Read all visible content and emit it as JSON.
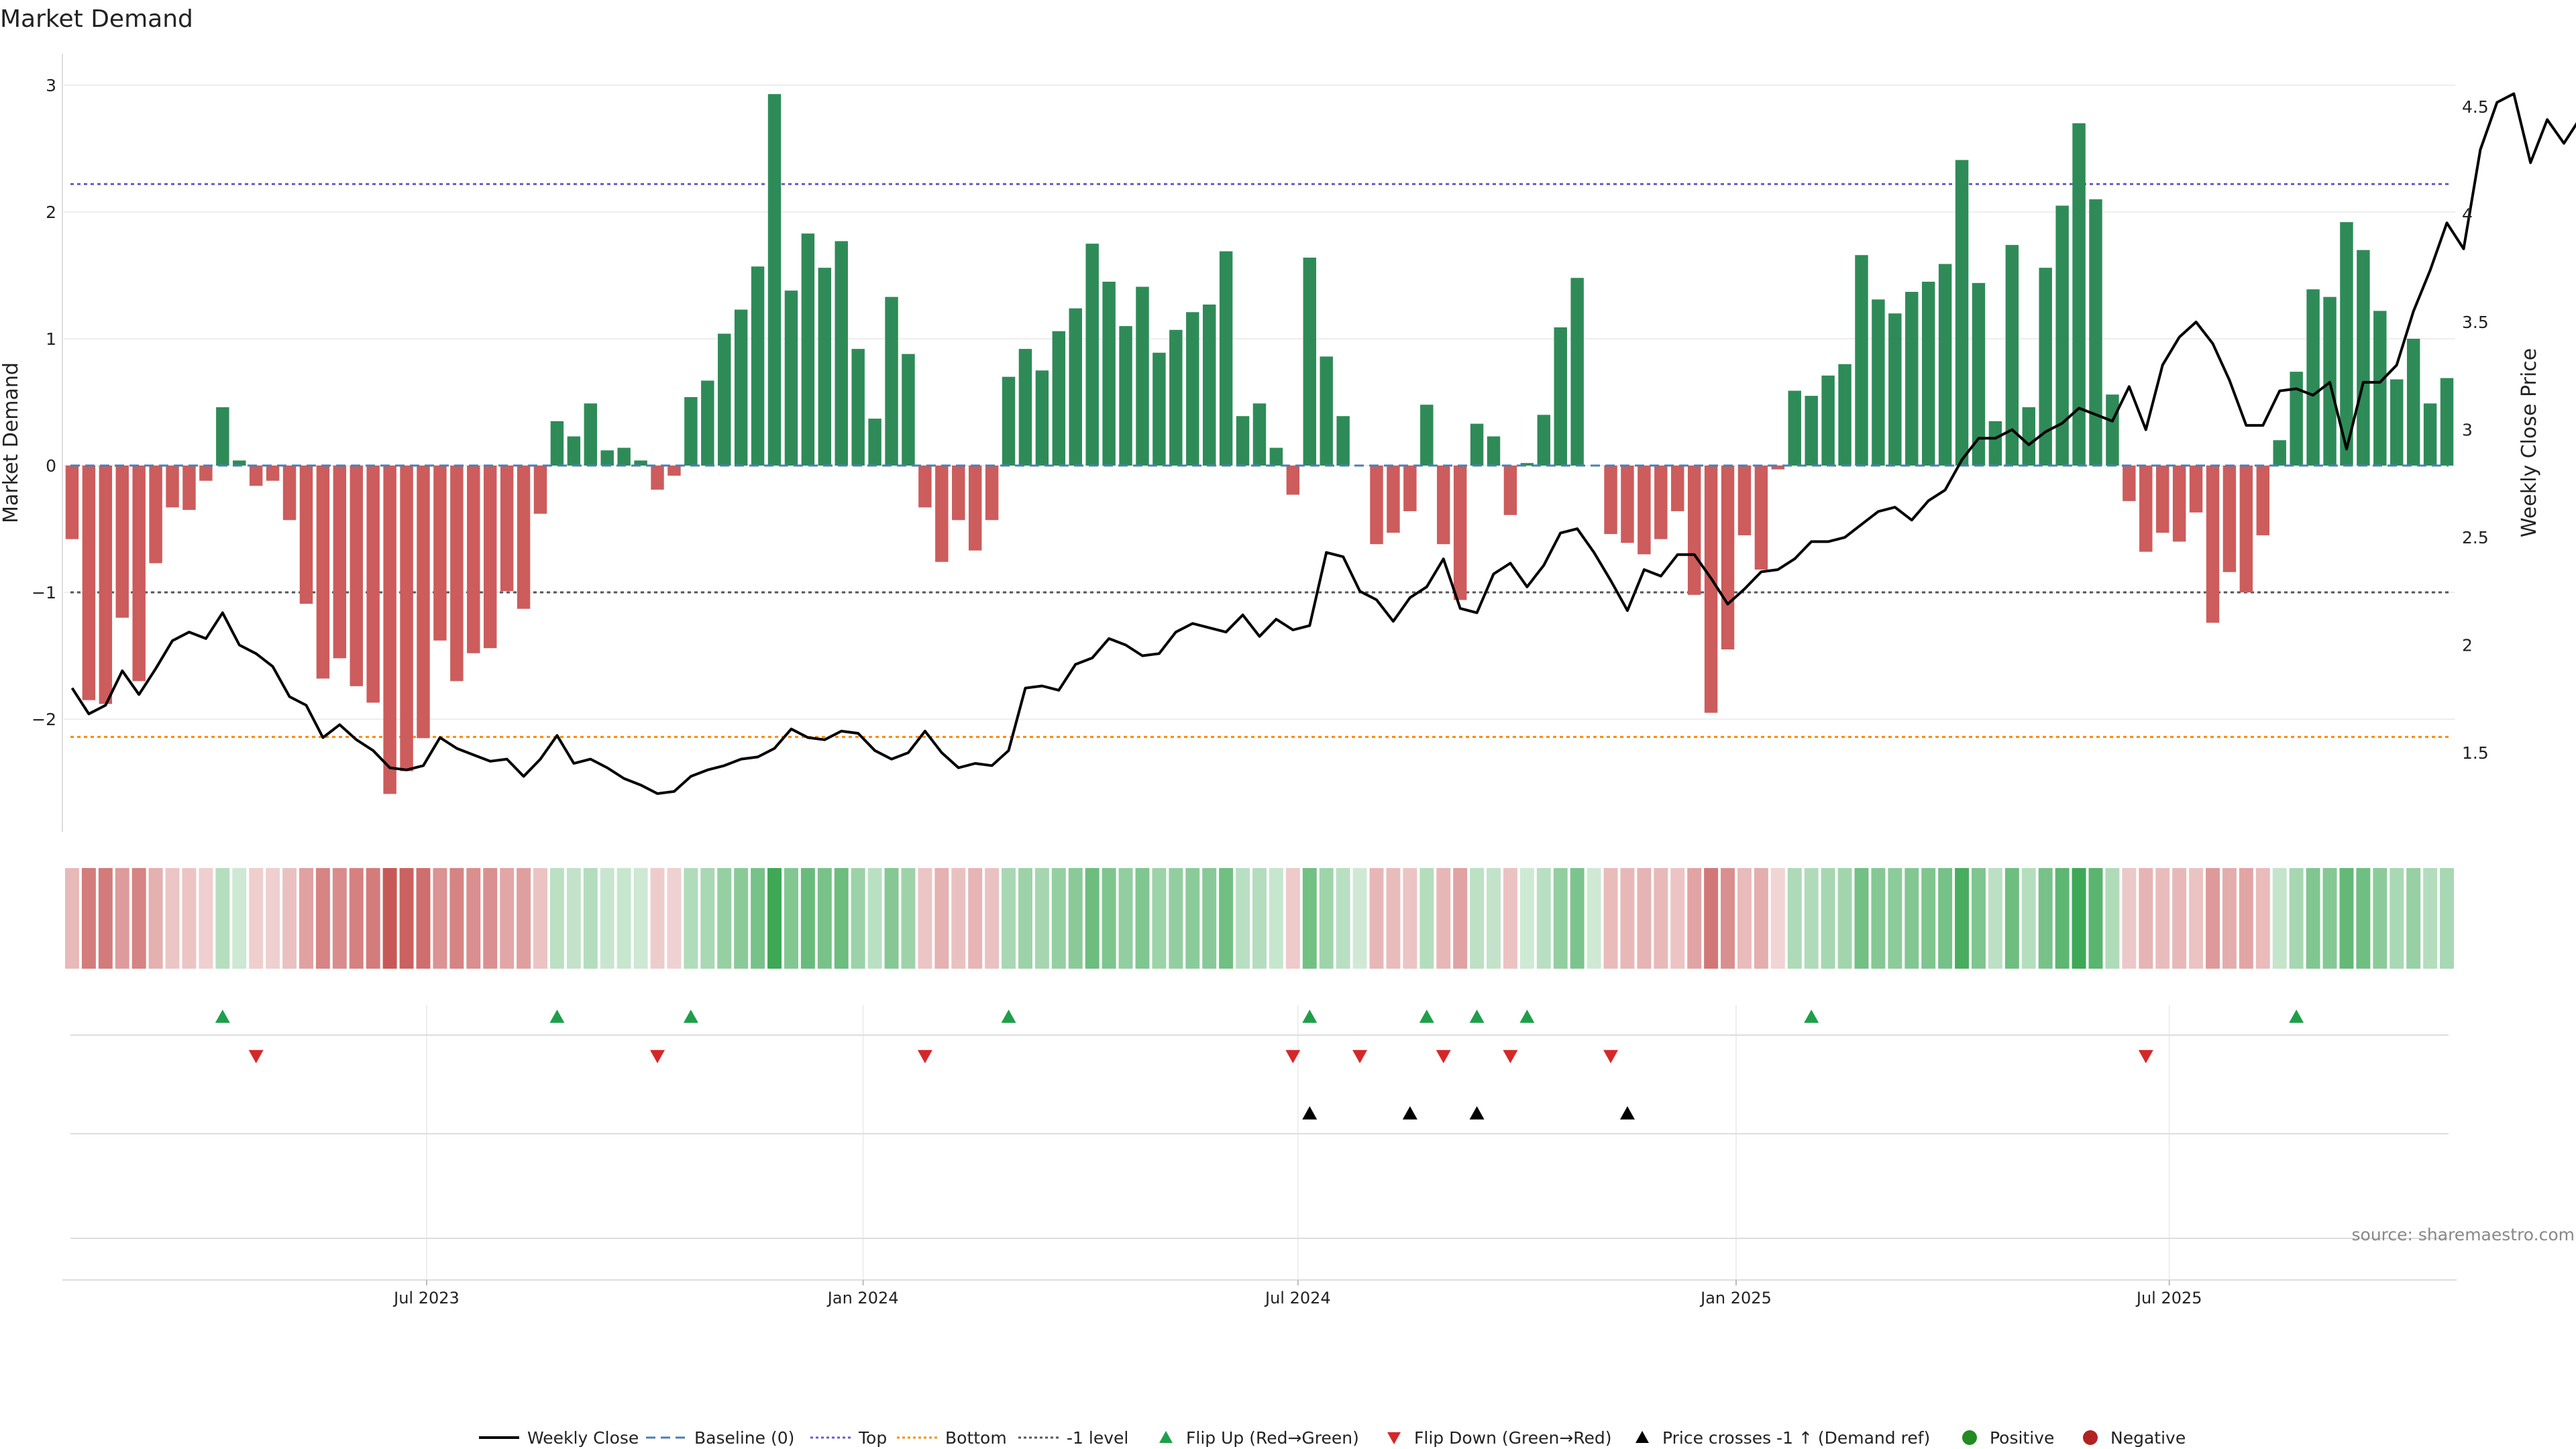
{
  "chart_data": {
    "type": "bar",
    "title": "Market Demand",
    "ylabel": "Market Demand",
    "y2label": "Weekly Close Price",
    "ylim": [
      -2.9,
      3.05
    ],
    "y2lim": [
      1.1,
      4.6
    ],
    "yticks": [
      3,
      2,
      1,
      0,
      -1,
      -2
    ],
    "ytick_labels": [
      "3",
      "2",
      "1",
      "0",
      "−1",
      "−2"
    ],
    "y2ticks": [
      4.5,
      4,
      3.5,
      3,
      2.5,
      2,
      1.5
    ],
    "y2tick_labels": [
      "4.5",
      "4",
      "3.5",
      "3",
      "2.5",
      "2",
      "1.5"
    ],
    "reference_lines": {
      "top": 2.22,
      "bottom": -2.14,
      "minus_one": -1,
      "baseline": 0
    },
    "x_ticks": [
      {
        "index": 21.2,
        "label": "Jul 2023"
      },
      {
        "index": 47.3,
        "label": "Jan 2024"
      },
      {
        "index": 73.3,
        "label": "Jul 2024"
      },
      {
        "index": 99.5,
        "label": "Jan 2025"
      },
      {
        "index": 125.4,
        "label": "Jul 2025"
      }
    ],
    "series": [
      {
        "name": "Market Demand",
        "values": [
          -0.58,
          -1.85,
          -1.88,
          -1.2,
          -1.7,
          -0.77,
          -0.33,
          -0.35,
          -0.12,
          0.46,
          0.04,
          -0.16,
          -0.12,
          -0.43,
          -1.09,
          -1.68,
          -1.52,
          -1.74,
          -1.87,
          -2.59,
          -2.41,
          -2.15,
          -1.38,
          -1.7,
          -1.48,
          -1.44,
          -0.99,
          -1.13,
          -0.38,
          0.35,
          0.23,
          0.49,
          0.12,
          0.14,
          0.04,
          -0.19,
          -0.08,
          0.54,
          0.67,
          1.04,
          1.23,
          1.57,
          2.93,
          1.38,
          1.83,
          1.56,
          1.77,
          0.92,
          0.37,
          1.33,
          0.88,
          -0.33,
          -0.76,
          -0.43,
          -0.67,
          -0.43,
          0.7,
          0.92,
          0.75,
          1.06,
          1.24,
          1.75,
          1.45,
          1.1,
          1.41,
          0.89,
          1.07,
          1.21,
          1.27,
          1.69,
          0.39,
          0.49,
          0.14,
          -0.23,
          1.64,
          0.86,
          0.39,
          0.0,
          -0.62,
          -0.53,
          -0.36,
          0.48,
          -0.62,
          -1.06,
          0.33,
          0.23,
          -0.39,
          0.02,
          0.4,
          1.09,
          1.48,
          0.0,
          -0.54,
          -0.61,
          -0.7,
          -0.58,
          -0.36,
          -1.02,
          -1.95,
          -1.45,
          -0.55,
          -0.82,
          -0.03,
          0.59,
          0.55,
          0.71,
          0.8,
          1.66,
          1.31,
          1.2,
          1.37,
          1.45,
          1.59,
          2.41,
          1.44,
          0.35,
          1.74,
          0.46,
          1.56,
          2.05,
          2.7,
          2.1,
          0.56,
          -0.28,
          -0.68,
          -0.53,
          -0.6,
          -0.37,
          -1.24,
          -0.84,
          -1.0,
          -0.55,
          0.2,
          0.74,
          1.39,
          1.33,
          1.92,
          1.7,
          1.22,
          0.68,
          1.0,
          0.49,
          0.69
        ]
      },
      {
        "name": "Weekly Close",
        "values": [
          1.8,
          1.68,
          1.72,
          1.88,
          1.77,
          1.89,
          2.02,
          2.06,
          2.03,
          2.15,
          2.0,
          1.96,
          1.9,
          1.76,
          1.72,
          1.57,
          1.63,
          1.56,
          1.51,
          1.43,
          1.42,
          1.44,
          1.57,
          1.52,
          1.49,
          1.46,
          1.47,
          1.39,
          1.47,
          1.58,
          1.45,
          1.47,
          1.43,
          1.38,
          1.35,
          1.31,
          1.32,
          1.39,
          1.42,
          1.44,
          1.47,
          1.48,
          1.52,
          1.61,
          1.57,
          1.56,
          1.6,
          1.59,
          1.51,
          1.47,
          1.5,
          1.6,
          1.5,
          1.43,
          1.45,
          1.44,
          1.51,
          1.8,
          1.81,
          1.79,
          1.91,
          1.94,
          2.03,
          2.0,
          1.95,
          1.96,
          2.06,
          2.1,
          2.08,
          2.06,
          2.14,
          2.04,
          2.12,
          2.07,
          2.09,
          2.43,
          2.41,
          2.25,
          2.21,
          2.11,
          2.22,
          2.27,
          2.4,
          2.17,
          2.15,
          2.33,
          2.38,
          2.27,
          2.37,
          2.52,
          2.54,
          2.43,
          2.3,
          2.16,
          2.35,
          2.32,
          2.42,
          2.42,
          2.31,
          2.19,
          2.26,
          2.34,
          2.35,
          2.4,
          2.48,
          2.48,
          2.5,
          2.56,
          2.62,
          2.64,
          2.58,
          2.67,
          2.72,
          2.86,
          2.96,
          2.96,
          3.0,
          2.93,
          2.99,
          3.03,
          3.1,
          3.07,
          3.04,
          3.2,
          3.0,
          3.3,
          3.43,
          3.5,
          3.4,
          3.23,
          3.02,
          3.02,
          3.18,
          3.19,
          3.16,
          3.22,
          2.91,
          3.22,
          3.22,
          3.3,
          3.55,
          3.74,
          3.96,
          3.84,
          4.3,
          4.52,
          4.56,
          4.24,
          4.44,
          4.33,
          4.45
        ]
      }
    ],
    "flip_up_indices": [
      9,
      29,
      37,
      56,
      74,
      81,
      84,
      87,
      104,
      133
    ],
    "flip_down_indices": [
      11,
      35,
      51,
      73,
      77,
      82,
      86,
      92,
      124
    ],
    "price_cross_indices": [
      74,
      80,
      84,
      93
    ],
    "legend_position": "bottom",
    "legend": [
      "Weekly Close",
      "Baseline (0)",
      "Top",
      "Bottom",
      "-1 level",
      "Flip Up (Red→Green)",
      "Flip Down (Green→Red)",
      "Price crosses -1 ↑ (Demand ref)",
      "Positive",
      "Negative"
    ],
    "source": "source: sharemaestro.com"
  },
  "colors": {
    "positive": "#2e8b57",
    "negative": "#cd5c5c",
    "price": "#000000",
    "top": "#6a5acd",
    "bottom": "#ff8c00",
    "minus_one": "#555555",
    "baseline": "#4a7fb5",
    "flip_up": "#1e9e4a",
    "flip_down": "#d62728",
    "legend_positive": "#228b22",
    "legend_negative": "#b22222"
  }
}
